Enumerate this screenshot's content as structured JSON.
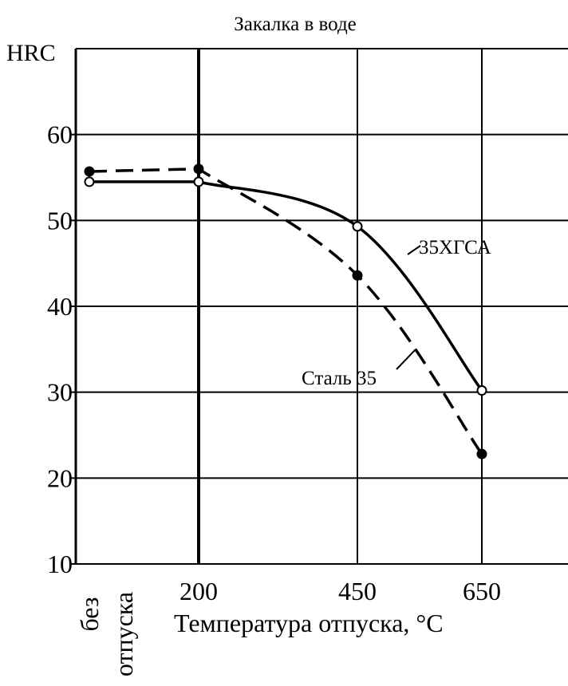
{
  "chart_data": {
    "type": "line",
    "title": "Закалка в воде",
    "ylabel": "HRC",
    "xlabel": "Температура отпуска, °C",
    "ylim": [
      10,
      70
    ],
    "y_ticks": [
      "60",
      "50",
      "40",
      "30",
      "20",
      "10"
    ],
    "y_tick_values": [
      60,
      50,
      40,
      30,
      20,
      10
    ],
    "x_categories": [
      "без отпуска",
      "200",
      "450",
      "650"
    ],
    "x_category_lines": [
      "без",
      "отпуска"
    ],
    "grid": true,
    "series": [
      {
        "name": "35ХГСА",
        "style": "solid",
        "marker": "open-circle",
        "x": [
          "без отпуска",
          "200",
          "450",
          "650"
        ],
        "values": [
          54.5,
          54.5,
          49.3,
          30.2
        ]
      },
      {
        "name": "Сталь 35",
        "style": "dashed",
        "marker": "filled-circle",
        "x": [
          "без отпуска",
          "200",
          "450",
          "650"
        ],
        "values": [
          55.7,
          56.0,
          43.6,
          22.8
        ]
      }
    ]
  },
  "colors": {
    "ink": "#000000",
    "background": "#ffffff"
  }
}
